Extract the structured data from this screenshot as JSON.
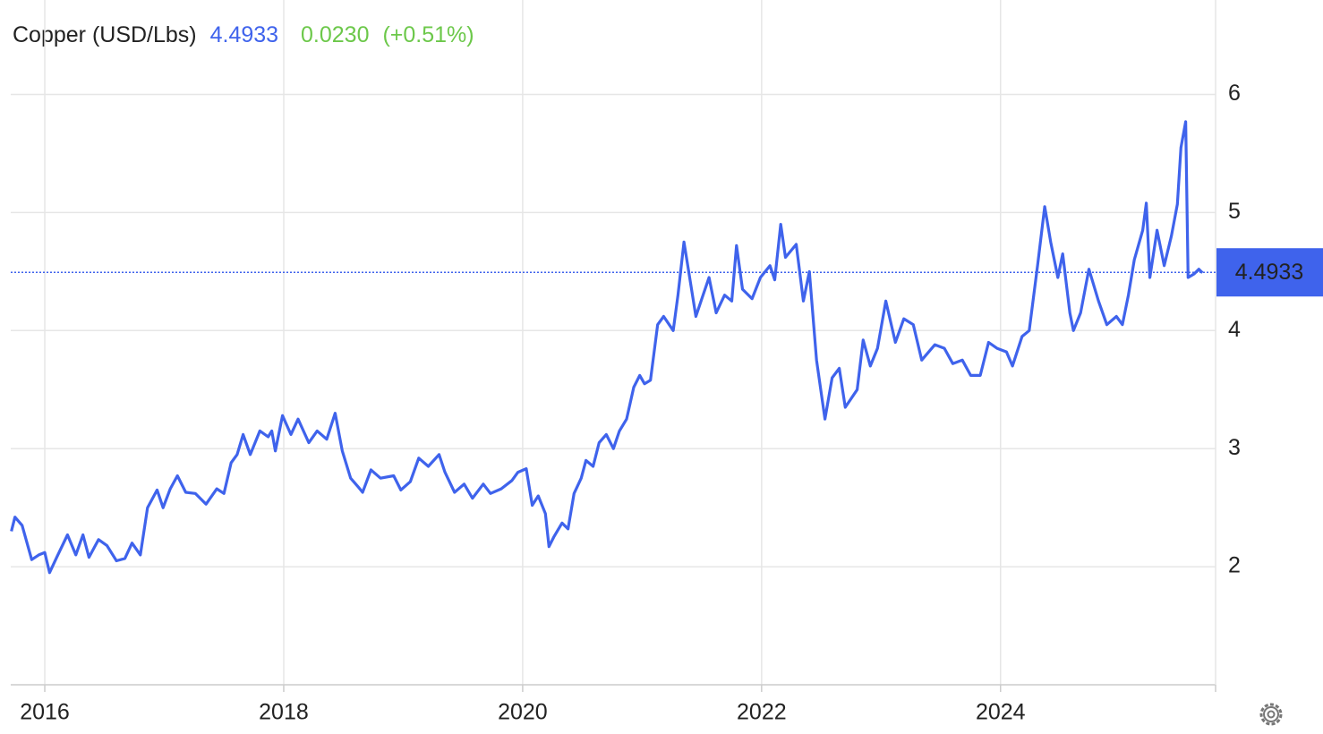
{
  "chart_data": {
    "type": "line",
    "title": "Copper (USD/Lbs)",
    "last": 4.4933,
    "change": "0.0230",
    "change_pct": "(+0.51%)",
    "xlim": [
      2015.715,
      2025.8
    ],
    "xticks": [
      2016,
      2018,
      2020,
      2022,
      2024
    ],
    "ylim": [
      1,
      6.8
    ],
    "yticks": [
      2,
      3,
      4,
      5,
      6
    ],
    "grid": true,
    "x": [
      2015.72,
      2015.75,
      2015.81,
      2015.89,
      2015.95,
      2016.0,
      2016.04,
      2016.1,
      2016.19,
      2016.26,
      2016.32,
      2016.37,
      2016.45,
      2016.52,
      2016.6,
      2016.67,
      2016.73,
      2016.8,
      2016.86,
      2016.94,
      2016.99,
      2017.05,
      2017.11,
      2017.18,
      2017.26,
      2017.35,
      2017.44,
      2017.5,
      2017.56,
      2017.61,
      2017.66,
      2017.72,
      2017.8,
      2017.87,
      2017.9,
      2017.93,
      2017.99,
      2018.06,
      2018.12,
      2018.21,
      2018.28,
      2018.36,
      2018.43,
      2018.49,
      2018.56,
      2018.62,
      2018.66,
      2018.73,
      2018.81,
      2018.92,
      2018.98,
      2019.06,
      2019.13,
      2019.21,
      2019.3,
      2019.35,
      2019.43,
      2019.51,
      2019.58,
      2019.67,
      2019.73,
      2019.82,
      2019.91,
      2019.96,
      2020.03,
      2020.08,
      2020.13,
      2020.19,
      2020.22,
      2020.26,
      2020.33,
      2020.38,
      2020.43,
      2020.49,
      2020.53,
      2020.59,
      2020.64,
      2020.7,
      2020.76,
      2020.81,
      2020.87,
      2020.93,
      2020.98,
      2021.02,
      2021.07,
      2021.13,
      2021.18,
      2021.26,
      2021.3,
      2021.35,
      2021.39,
      2021.45,
      2021.51,
      2021.56,
      2021.62,
      2021.69,
      2021.75,
      2021.79,
      2021.84,
      2021.92,
      2021.99,
      2022.07,
      2022.11,
      2022.16,
      2022.2,
      2022.29,
      2022.35,
      2022.4,
      2022.46,
      2022.53,
      2022.59,
      2022.65,
      2022.7,
      2022.8,
      2022.85,
      2022.91,
      2022.97,
      2023.04,
      2023.12,
      2023.19,
      2023.27,
      2023.34,
      2023.45,
      2023.53,
      2023.6,
      2023.68,
      2023.75,
      2023.83,
      2023.9,
      2023.97,
      2024.05,
      2024.1,
      2024.18,
      2024.24,
      2024.31,
      2024.37,
      2024.42,
      2024.48,
      2024.52,
      2024.58,
      2024.61,
      2024.67,
      2024.74,
      2024.82,
      2024.89,
      2024.97,
      2025.02,
      2025.07,
      2025.12,
      2025.19,
      2025.22,
      2025.25,
      2025.31,
      2025.37,
      2025.43,
      2025.48,
      2025.51,
      2025.55,
      2025.57,
      2025.62,
      2025.66,
      2025.69
    ],
    "series": [
      {
        "name": "Copper (USD/Lbs)",
        "color": "#3f63ec",
        "values": [
          2.3,
          2.42,
          2.35,
          2.06,
          2.1,
          2.12,
          1.95,
          2.08,
          2.27,
          2.1,
          2.27,
          2.08,
          2.23,
          2.18,
          2.05,
          2.07,
          2.2,
          2.1,
          2.5,
          2.65,
          2.5,
          2.66,
          2.77,
          2.63,
          2.62,
          2.53,
          2.66,
          2.62,
          2.88,
          2.95,
          3.12,
          2.95,
          3.15,
          3.1,
          3.15,
          2.98,
          3.28,
          3.12,
          3.25,
          3.05,
          3.15,
          3.08,
          3.3,
          2.98,
          2.75,
          2.68,
          2.63,
          2.82,
          2.75,
          2.77,
          2.65,
          2.72,
          2.92,
          2.85,
          2.95,
          2.8,
          2.63,
          2.7,
          2.58,
          2.7,
          2.62,
          2.66,
          2.73,
          2.8,
          2.83,
          2.52,
          2.6,
          2.45,
          2.17,
          2.25,
          2.37,
          2.32,
          2.62,
          2.75,
          2.9,
          2.85,
          3.05,
          3.12,
          3.0,
          3.15,
          3.25,
          3.52,
          3.62,
          3.55,
          3.58,
          4.05,
          4.12,
          4.0,
          4.3,
          4.75,
          4.5,
          4.12,
          4.3,
          4.45,
          4.15,
          4.3,
          4.25,
          4.72,
          4.35,
          4.27,
          4.45,
          4.55,
          4.43,
          4.9,
          4.62,
          4.73,
          4.25,
          4.5,
          3.75,
          3.25,
          3.6,
          3.68,
          3.35,
          3.5,
          3.92,
          3.7,
          3.85,
          4.25,
          3.9,
          4.1,
          4.05,
          3.75,
          3.88,
          3.85,
          3.72,
          3.75,
          3.62,
          3.62,
          3.9,
          3.85,
          3.82,
          3.7,
          3.95,
          4.0,
          4.55,
          5.05,
          4.75,
          4.45,
          4.65,
          4.15,
          4.0,
          4.15,
          4.52,
          4.25,
          4.05,
          4.12,
          4.05,
          4.3,
          4.6,
          4.85,
          5.08,
          4.45,
          4.85,
          4.55,
          4.8,
          5.07,
          5.55,
          5.77,
          4.45,
          4.48,
          4.52,
          4.49
        ]
      }
    ]
  }
}
